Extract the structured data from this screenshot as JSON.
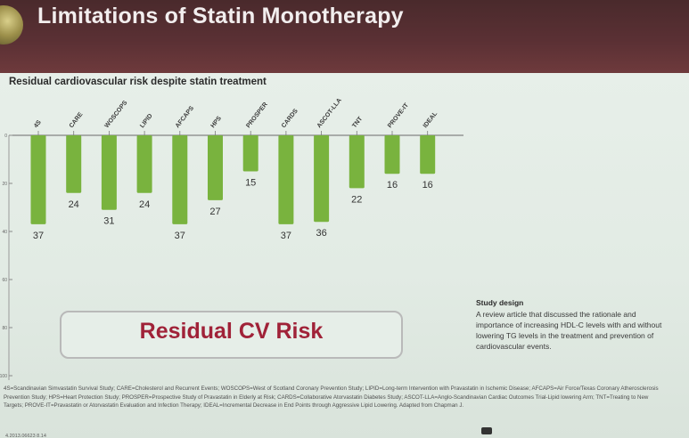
{
  "slide_title": "Limitations of Statin Monotherapy",
  "chart_data": {
    "type": "bar",
    "subtitle": "Residual cardiovascular risk despite statin treatment",
    "categories": [
      "4S",
      "CARE",
      "WOSCOPS",
      "LIPID",
      "AFCAPS",
      "HPS",
      "PROSPER",
      "CARDS",
      "ASCOT-LLA",
      "TNT",
      "PROVE-IT",
      "IDEAL"
    ],
    "values": [
      37,
      24,
      31,
      24,
      37,
      27,
      15,
      37,
      36,
      22,
      16,
      16
    ],
    "y_ticks": [
      "0",
      "20",
      "40",
      "60",
      "80",
      "100"
    ],
    "ylim": [
      0,
      100
    ],
    "inverted": true,
    "bar_color": "#79b33e",
    "value_label_color": "#333333"
  },
  "callout": "Residual CV Risk",
  "callout_color": "#a02238",
  "study_design": {
    "heading": "Study design",
    "text": "A review article that discussed the rationale and importance of increasing HDL-C levels with and without lowering TG levels in the treatment and prevention of cardiovascular events."
  },
  "footnote": "4S=Scandinavian Simvastatin Survival Study; CARE=Cholesterol and Recurrent Events; WOSCOPS=West of Scotland Coronary Prevention Study; LIPID=Long-term Intervention with Pravastatin in Ischemic Disease; AFCAPS=Air Force/Texas Coronary Atherosclerosis Prevention Study; HPS=Heart Protection Study; PROSPER=Prospective Study of Pravastatin in Elderly at Risk; CARDS=Collaborative Atorvastatin Diabetes Study; ASCOT-LLA=Anglo-Scandinavian Cardiac Outcomes Trial-Lipid lowering Arm; TNT=Treating to New Targets; PROVE-IT=Pravastatin or Atorvastatin Evaluation and Infection Therapy; IDEAL=Incremental Decrease in End Points through Aggressive Lipid Lowering. Adapted from Chapman J.",
  "footer_id": "4.2013.06623 8.14"
}
